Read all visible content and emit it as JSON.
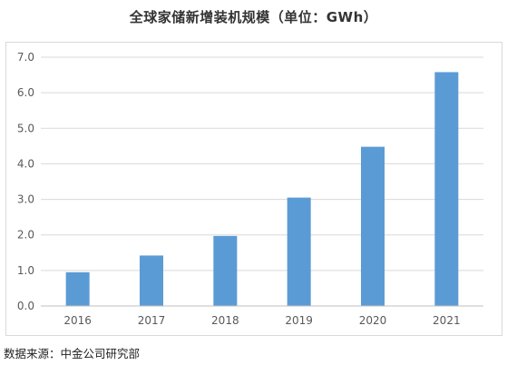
{
  "chart_data": {
    "type": "bar",
    "title": "全球家储新增装机规模（单位：GWh）",
    "categories": [
      "2016",
      "2017",
      "2018",
      "2019",
      "2020",
      "2021"
    ],
    "values": [
      0.95,
      1.42,
      1.97,
      3.05,
      4.48,
      6.58
    ],
    "ylim": [
      0,
      7
    ],
    "yticks": [
      "0.0",
      "1.0",
      "2.0",
      "3.0",
      "4.0",
      "5.0",
      "6.0",
      "7.0"
    ],
    "grid": true,
    "legend": "none",
    "bar_color": "#5b9bd5",
    "grid_color": "#d9d9d9",
    "axis_color": "#bfbfbf",
    "tick_text_color": "#595959"
  },
  "source_note": "数据来源：中金公司研究部"
}
